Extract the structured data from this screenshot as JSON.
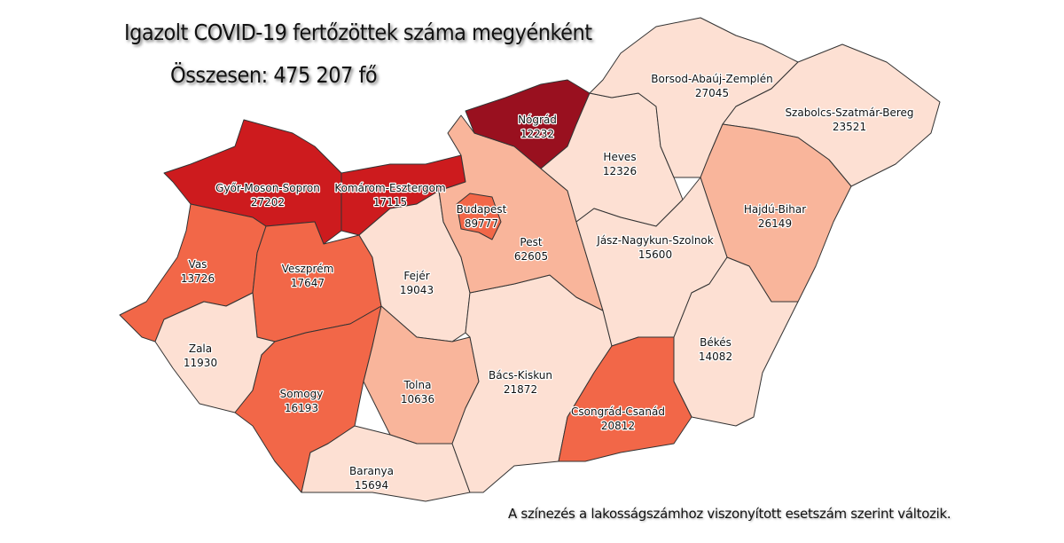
{
  "title": "Igazolt COVID-19 fertőzöttek száma megyénként",
  "total": "Összesen: 475 207 fő",
  "note": "A színezés a lakosságszámhoz viszonyított esetszám szerint változik.",
  "colors": {
    "level1": "#fde0d3",
    "level2": "#f9b59b",
    "level3": "#f26748",
    "level4": "#cd1b1e",
    "level5": "#99101f"
  },
  "counties": [
    {
      "name": "Győr-Moson-Sopron",
      "value": "27202",
      "level": "level4"
    },
    {
      "name": "Komárom-Esztergom",
      "value": "17115",
      "level": "level4"
    },
    {
      "name": "Vas",
      "value": "13726",
      "level": "level3"
    },
    {
      "name": "Veszprém",
      "value": "17647",
      "level": "level3"
    },
    {
      "name": "Zala",
      "value": "11930",
      "level": "level1"
    },
    {
      "name": "Somogy",
      "value": "16193",
      "level": "level3"
    },
    {
      "name": "Fejér",
      "value": "19043",
      "level": "level1"
    },
    {
      "name": "Tolna",
      "value": "10636",
      "level": "level2"
    },
    {
      "name": "Baranya",
      "value": "15694",
      "level": "level1"
    },
    {
      "name": "Bács-Kiskun",
      "value": "21872",
      "level": "level1"
    },
    {
      "name": "Pest",
      "value": "62605",
      "level": "level2"
    },
    {
      "name": "Budapest",
      "value": "89777",
      "level": "level3"
    },
    {
      "name": "Nógrád",
      "value": "12232",
      "level": "level5"
    },
    {
      "name": "Heves",
      "value": "12326",
      "level": "level1"
    },
    {
      "name": "Borsod-Abaúj-Zemplén",
      "value": "27045",
      "level": "level1"
    },
    {
      "name": "Szabolcs-Szatmár-Bereg",
      "value": "23521",
      "level": "level1"
    },
    {
      "name": "Hajdú-Bihar",
      "value": "26149",
      "level": "level2"
    },
    {
      "name": "Jász-Nagykun-Szolnok",
      "value": "15600",
      "level": "level1"
    },
    {
      "name": "Békés",
      "value": "14082",
      "level": "level1"
    },
    {
      "name": "Csongrád-Csanád",
      "value": "20812",
      "level": "level3"
    }
  ]
}
